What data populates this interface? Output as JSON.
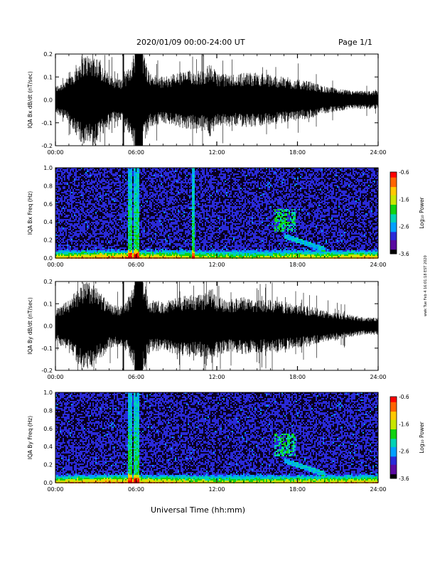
{
  "header": {
    "title": "2020/01/09  00:00-24:00 UT",
    "page": "Page 1/1"
  },
  "footer": {
    "xlabel": "Universal Time (hh:mm)"
  },
  "sidenote": "wwk Tue Feb 4 16:01:18 EST 2020",
  "colorbar": {
    "label": "Log₁₀ Power",
    "ticks": [
      "-0.6",
      "-1.6",
      "-2.6",
      "-3.6"
    ],
    "colors": [
      "#000000",
      "#5a0aa0",
      "#2a2ad8",
      "#00a0ff",
      "#00d2b4",
      "#10d210",
      "#c8e600",
      "#ffc800",
      "#ff6400",
      "#ff0000"
    ]
  },
  "chart_data": [
    {
      "type": "line",
      "ylabel": "IQA Bx dB/dt (nT/sec)",
      "yticks": [
        "0.2",
        "0.1",
        "0.0",
        "-0.1",
        "-0.2"
      ],
      "ylim": [
        -0.2,
        0.2
      ],
      "xticks": [
        "00:00",
        "06:00",
        "12:00",
        "18:00",
        "24:00"
      ],
      "xlim_hours": [
        0,
        24
      ],
      "envelope": {
        "hours": [
          0,
          1,
          2,
          2.5,
          3,
          4,
          5,
          5.5,
          5.9,
          6.5,
          7,
          8,
          9,
          10,
          11,
          11.5,
          12,
          13,
          14,
          15,
          16,
          17,
          18,
          19,
          20,
          21,
          22,
          23,
          24
        ],
        "amplitude": [
          0.06,
          0.1,
          0.2,
          0.2,
          0.2,
          0.11,
          0.09,
          0.15,
          0.22,
          0.22,
          0.12,
          0.1,
          0.12,
          0.13,
          0.13,
          0.16,
          0.12,
          0.11,
          0.12,
          0.12,
          0.11,
          0.1,
          0.09,
          0.08,
          0.06,
          0.05,
          0.04,
          0.04,
          0.04
        ]
      }
    },
    {
      "type": "heatmap",
      "ylabel": "IQA Bx Freq (Hz)",
      "yticks": [
        "1.0",
        "0.8",
        "0.6",
        "0.4",
        "0.2",
        "0.0"
      ],
      "ylim": [
        0,
        1.0
      ],
      "xticks": [
        "00:00",
        "06:00",
        "12:00",
        "18:00",
        "24:00"
      ],
      "xlim_hours": [
        0,
        24
      ],
      "zlabel": "Log₁₀ Power",
      "zlim": [
        -3.6,
        -0.6
      ],
      "features": {
        "bright_band_at_hours": [
          5.5,
          5.9,
          6.1,
          10.2
        ],
        "pulsation_band_hours": [
          16.2,
          17.8
        ],
        "pulsation_band_freq_hz": [
          0.3,
          0.55
        ]
      }
    },
    {
      "type": "line",
      "ylabel": "IQA By dB/dt (nT/sec)",
      "yticks": [
        "0.2",
        "0.1",
        "0.0",
        "-0.1",
        "-0.2"
      ],
      "ylim": [
        -0.2,
        0.2
      ],
      "xticks": [
        "00:00",
        "06:00",
        "12:00",
        "18:00",
        "24:00"
      ],
      "xlim_hours": [
        0,
        24
      ],
      "envelope": {
        "hours": [
          0,
          1,
          2,
          2.5,
          3,
          4,
          5,
          5.5,
          5.9,
          6.5,
          7,
          8,
          9,
          10,
          11,
          11.5,
          12,
          13,
          14,
          15,
          16,
          17,
          18,
          19,
          20,
          21,
          22,
          23,
          24
        ],
        "amplitude": [
          0.07,
          0.12,
          0.2,
          0.2,
          0.18,
          0.1,
          0.09,
          0.14,
          0.22,
          0.22,
          0.12,
          0.11,
          0.13,
          0.14,
          0.14,
          0.18,
          0.13,
          0.12,
          0.13,
          0.12,
          0.12,
          0.11,
          0.1,
          0.09,
          0.07,
          0.06,
          0.05,
          0.04,
          0.04
        ]
      }
    },
    {
      "type": "heatmap",
      "ylabel": "IQA By Freq (Hz)",
      "yticks": [
        "1.0",
        "0.8",
        "0.6",
        "0.4",
        "0.2",
        "0.0"
      ],
      "ylim": [
        0,
        1.0
      ],
      "xticks": [
        "00:00",
        "06:00",
        "12:00",
        "18:00",
        "24:00"
      ],
      "xlim_hours": [
        0,
        24
      ],
      "zlabel": "Log₁₀ Power",
      "zlim": [
        -3.6,
        -0.6
      ],
      "features": {
        "bright_band_at_hours": [
          5.5,
          5.9,
          6.1
        ],
        "pulsation_band_hours": [
          16.2,
          17.8
        ],
        "pulsation_band_freq_hz": [
          0.3,
          0.55
        ]
      }
    }
  ]
}
